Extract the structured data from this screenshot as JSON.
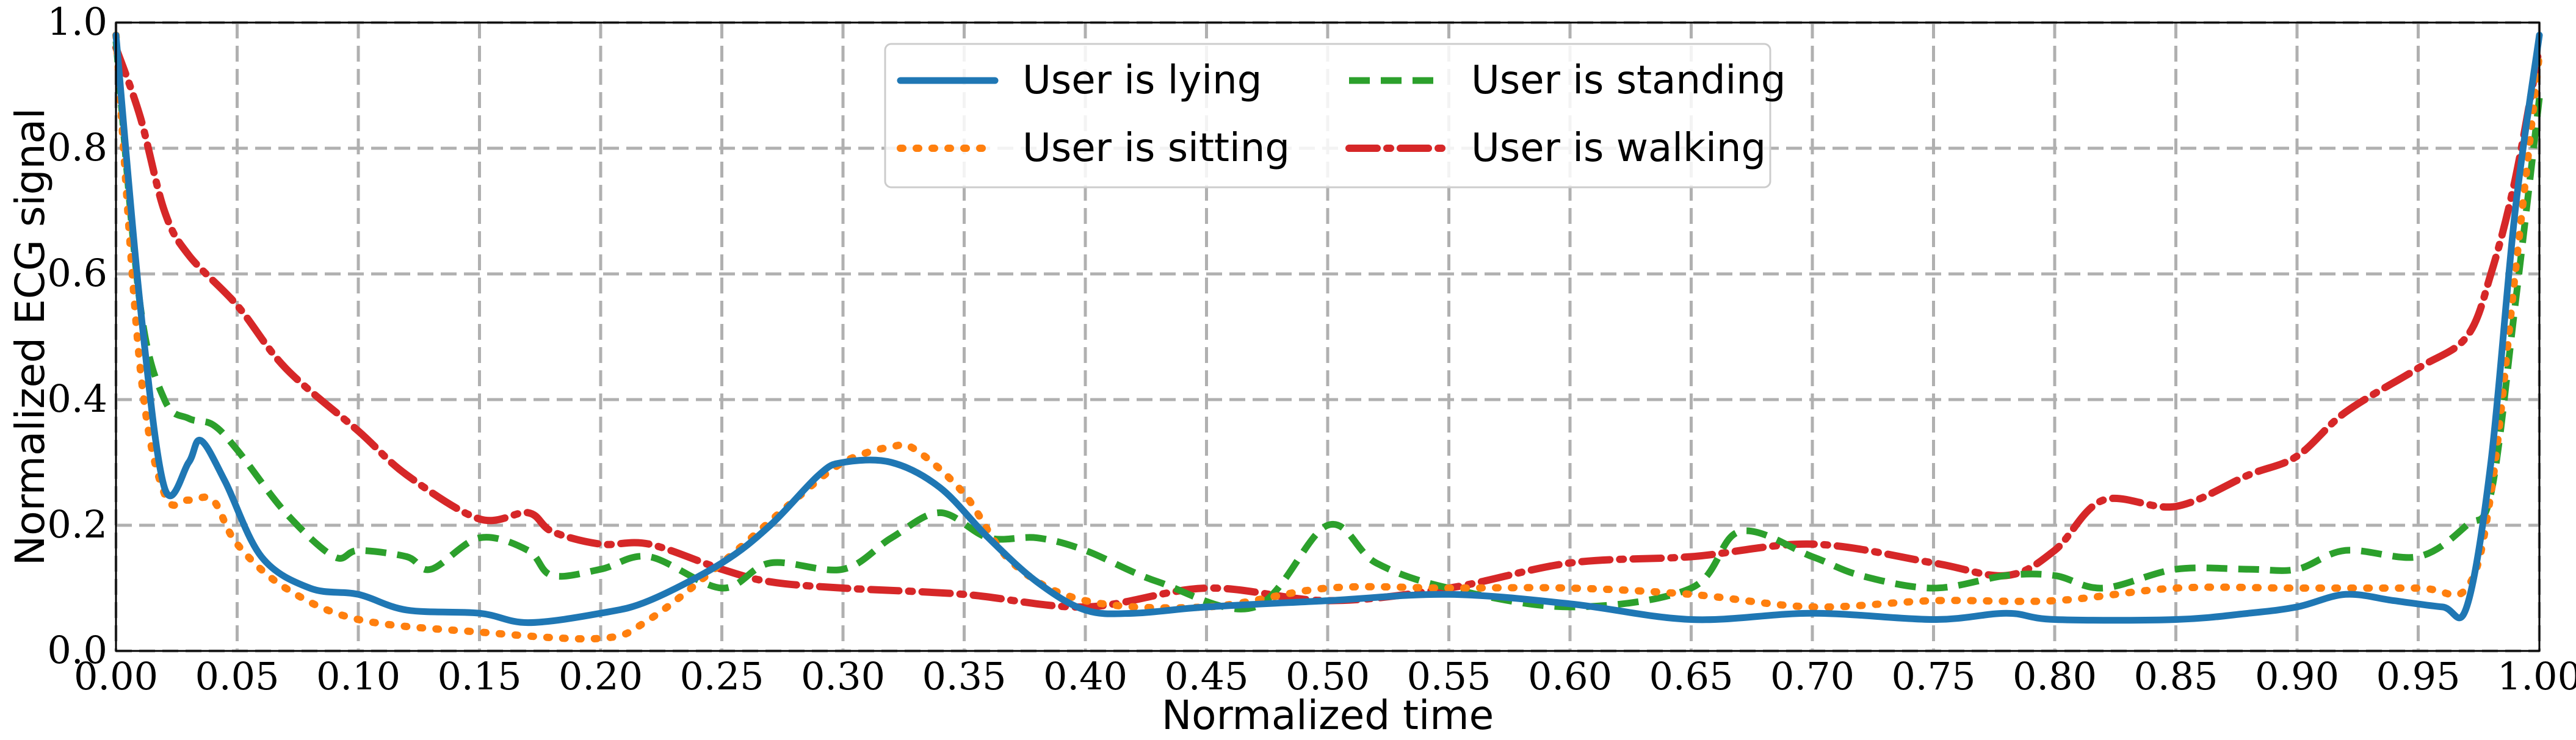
{
  "chart_data": {
    "type": "line",
    "title": "",
    "xlabel": "Normalized time",
    "ylabel": "Normalized ECG signal",
    "xlim": [
      0.0,
      1.0
    ],
    "ylim": [
      0.0,
      1.0
    ],
    "xticks": [
      "0.00",
      "0.05",
      "0.10",
      "0.15",
      "0.20",
      "0.25",
      "0.30",
      "0.35",
      "0.40",
      "0.45",
      "0.50",
      "0.55",
      "0.60",
      "0.65",
      "0.70",
      "0.75",
      "0.80",
      "0.85",
      "0.90",
      "0.95",
      "1.00"
    ],
    "yticks": [
      "0.0",
      "0.2",
      "0.4",
      "0.6",
      "0.8",
      "1.0"
    ],
    "grid": true,
    "legend_position": "top-center",
    "series": [
      {
        "name": "User is lying",
        "color": "#1f77b4",
        "style": "solid",
        "x": [
          0.0,
          0.01,
          0.02,
          0.03,
          0.035,
          0.045,
          0.06,
          0.08,
          0.1,
          0.12,
          0.15,
          0.17,
          0.2,
          0.22,
          0.25,
          0.27,
          0.29,
          0.3,
          0.32,
          0.34,
          0.36,
          0.38,
          0.4,
          0.42,
          0.45,
          0.5,
          0.55,
          0.6,
          0.65,
          0.7,
          0.75,
          0.78,
          0.8,
          0.85,
          0.88,
          0.9,
          0.92,
          0.94,
          0.96,
          0.97,
          0.98,
          0.99,
          1.0
        ],
        "y": [
          0.98,
          0.55,
          0.26,
          0.3,
          0.335,
          0.27,
          0.15,
          0.1,
          0.09,
          0.065,
          0.06,
          0.045,
          0.06,
          0.08,
          0.14,
          0.2,
          0.28,
          0.3,
          0.3,
          0.26,
          0.18,
          0.11,
          0.065,
          0.06,
          0.07,
          0.08,
          0.09,
          0.075,
          0.05,
          0.06,
          0.05,
          0.06,
          0.05,
          0.05,
          0.06,
          0.07,
          0.09,
          0.08,
          0.07,
          0.07,
          0.3,
          0.7,
          0.98
        ]
      },
      {
        "name": "User is sitting",
        "color": "#ff7f0e",
        "style": "dotted",
        "x": [
          0.0,
          0.01,
          0.02,
          0.03,
          0.04,
          0.05,
          0.07,
          0.1,
          0.15,
          0.2,
          0.22,
          0.25,
          0.28,
          0.3,
          0.32,
          0.33,
          0.35,
          0.37,
          0.4,
          0.45,
          0.5,
          0.55,
          0.6,
          0.65,
          0.7,
          0.75,
          0.8,
          0.85,
          0.9,
          0.95,
          0.97,
          0.98,
          0.99,
          1.0
        ],
        "y": [
          0.98,
          0.45,
          0.25,
          0.24,
          0.24,
          0.17,
          0.1,
          0.05,
          0.03,
          0.02,
          0.05,
          0.14,
          0.24,
          0.3,
          0.325,
          0.32,
          0.25,
          0.14,
          0.08,
          0.07,
          0.1,
          0.1,
          0.1,
          0.09,
          0.07,
          0.08,
          0.08,
          0.1,
          0.1,
          0.1,
          0.1,
          0.25,
          0.6,
          0.95
        ]
      },
      {
        "name": "User is standing",
        "color": "#2ca02c",
        "style": "dashed",
        "x": [
          0.0,
          0.01,
          0.02,
          0.03,
          0.04,
          0.05,
          0.07,
          0.09,
          0.1,
          0.12,
          0.13,
          0.15,
          0.17,
          0.18,
          0.2,
          0.22,
          0.25,
          0.27,
          0.3,
          0.32,
          0.34,
          0.36,
          0.38,
          0.4,
          0.43,
          0.47,
          0.5,
          0.52,
          0.55,
          0.6,
          0.65,
          0.67,
          0.7,
          0.72,
          0.75,
          0.78,
          0.8,
          0.82,
          0.85,
          0.88,
          0.9,
          0.92,
          0.95,
          0.97,
          0.98,
          0.99,
          1.0
        ],
        "y": [
          0.97,
          0.55,
          0.4,
          0.37,
          0.36,
          0.32,
          0.22,
          0.15,
          0.16,
          0.15,
          0.13,
          0.18,
          0.16,
          0.12,
          0.13,
          0.15,
          0.1,
          0.14,
          0.13,
          0.18,
          0.22,
          0.18,
          0.18,
          0.16,
          0.11,
          0.07,
          0.2,
          0.14,
          0.1,
          0.07,
          0.1,
          0.19,
          0.15,
          0.12,
          0.1,
          0.12,
          0.12,
          0.1,
          0.13,
          0.13,
          0.13,
          0.16,
          0.15,
          0.2,
          0.25,
          0.55,
          0.88
        ]
      },
      {
        "name": "User is walking",
        "color": "#d62728",
        "style": "dashdot",
        "x": [
          0.0,
          0.01,
          0.02,
          0.03,
          0.05,
          0.07,
          0.1,
          0.12,
          0.15,
          0.17,
          0.18,
          0.2,
          0.22,
          0.25,
          0.27,
          0.3,
          0.35,
          0.4,
          0.45,
          0.5,
          0.55,
          0.6,
          0.65,
          0.7,
          0.75,
          0.78,
          0.8,
          0.82,
          0.85,
          0.88,
          0.9,
          0.92,
          0.95,
          0.97,
          0.98,
          0.99,
          1.0
        ],
        "y": [
          0.96,
          0.85,
          0.7,
          0.63,
          0.55,
          0.45,
          0.35,
          0.28,
          0.21,
          0.22,
          0.19,
          0.17,
          0.17,
          0.13,
          0.11,
          0.1,
          0.09,
          0.07,
          0.1,
          0.08,
          0.1,
          0.14,
          0.15,
          0.17,
          0.14,
          0.12,
          0.16,
          0.24,
          0.23,
          0.28,
          0.31,
          0.38,
          0.45,
          0.5,
          0.6,
          0.75,
          0.96
        ]
      }
    ]
  }
}
